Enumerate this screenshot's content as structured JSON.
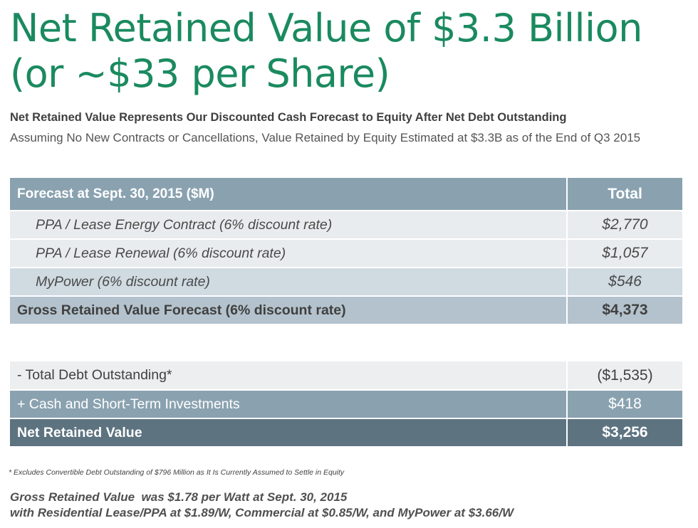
{
  "title_line1": "Net Retained Value of $3.3 Billion",
  "title_line2": "(or ~$33 per Share)",
  "subtitle_bold": "Net Retained Value Represents Our Discounted Cash Forecast to Equity After Net Debt Outstanding",
  "subtitle_regular": "Assuming No New Contracts or Cancellations, Value Retained by Equity Estimated at $3.3B as of the End of Q3 2015",
  "forecast_table": {
    "header": {
      "label": "Forecast at Sept. 30, 2015 ($M)",
      "value": "Total"
    },
    "rows": [
      {
        "label": "PPA / Lease Energy Contract (6% discount rate)",
        "value": "$2,770"
      },
      {
        "label": "PPA / Lease Renewal (6% discount rate)",
        "value": "$1,057"
      },
      {
        "label": "MyPower (6% discount rate)",
        "value": "$546"
      },
      {
        "label": "Gross Retained Value Forecast (6% discount rate)",
        "value": "$4,373"
      }
    ]
  },
  "debt_table": {
    "rows": [
      {
        "label": "- Total Debt Outstanding*",
        "value": "($1,535)"
      },
      {
        "label": "+ Cash and Short-Term Investments",
        "value": "$418"
      },
      {
        "label": "Net Retained Value",
        "value": "$3,256"
      }
    ]
  },
  "footnote": "* Excludes Convertible Debt Outstanding of $796 Million as It Is Currently Assumed to Settle in Equity",
  "bottom_line1": "Gross Retained Value  was $1.78 per Watt at Sept. 30, 2015",
  "bottom_line2": "with Residential Lease/PPA at $1.89/W, Commercial at $0.85/W, and MyPower at $3.66/W",
  "colors": {
    "title": "#1a8a5f",
    "header_blue": "#8aa2b0",
    "light_row": "#e9ecee",
    "mid_row": "#cfdae1",
    "gross_row": "#b3c2cc",
    "net_row": "#5d7380"
  }
}
